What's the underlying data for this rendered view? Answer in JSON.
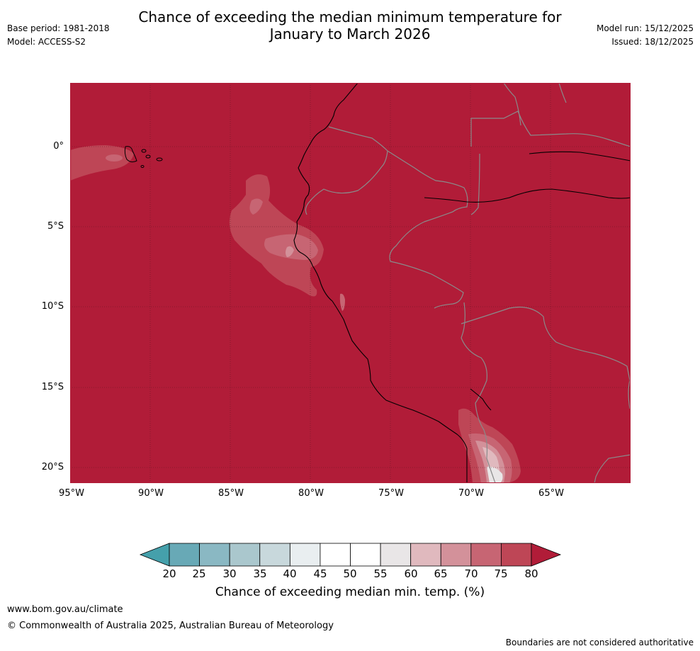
{
  "header": {
    "title_line1": "Chance of exceeding the median minimum temperature for",
    "title_line2": "January to March 2026",
    "base_period": "Base period: 1981-2018",
    "model": "Model: ACCESS-S2",
    "model_run": "Model run: 15/12/2025",
    "issued": "Issued: 18/12/2025"
  },
  "map": {
    "fill_color": "#b11c38",
    "lat_labels": [
      "0°",
      "5°S",
      "10°S",
      "15°S",
      "20°S"
    ],
    "lon_labels": [
      "95°W",
      "90°W",
      "85°W",
      "80°W",
      "75°W",
      "70°W",
      "65°W"
    ]
  },
  "colorbar": {
    "ticks": [
      "20",
      "25",
      "30",
      "35",
      "40",
      "45",
      "50",
      "55",
      "60",
      "65",
      "70",
      "75",
      "80"
    ],
    "colors": [
      "#68a9b6",
      "#8ab8c3",
      "#aac7cd",
      "#c8d8dc",
      "#e9eef0",
      "#ffffff",
      "#ffffff",
      "#e9e6e7",
      "#e0b9be",
      "#d3919a",
      "#c76573",
      "#be4656"
    ],
    "low_color": "#45a0ab",
    "high_color": "#b11c38",
    "label": "Chance of exceeding median min. temp. (%)"
  },
  "footer": {
    "url": "www.bom.gov.au/climate",
    "copyright": "© Commonwealth of Australia 2025, Australian Bureau of Meteorology",
    "disclaimer": "Boundaries are not considered authoritative"
  }
}
